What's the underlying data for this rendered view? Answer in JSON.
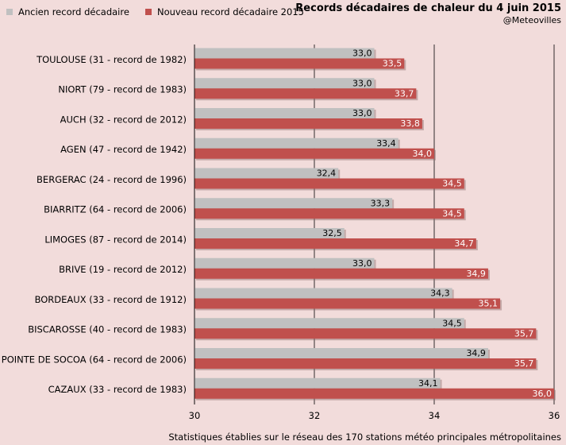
{
  "title": "Records décadaires de chaleur du 4 juin 2015",
  "subtitle": "@Meteovilles",
  "footnote": "Statistiques établies sur le réseau des 170 stations météo principales métropolitaines",
  "colors": {
    "old": "#c0c0c0",
    "new": "#c0504d",
    "background": "#f2dcdb"
  },
  "chart_data": {
    "type": "bar",
    "orientation": "horizontal",
    "categories": [
      "TOULOUSE (31 - record de 1982)",
      "NIORT (79 - record de 1983)",
      "AUCH (32 - record de 2012)",
      "AGEN (47 - record de 1942)",
      "BERGERAC (24 - record de 1996)",
      "BIARRITZ (64 - record de 2006)",
      "LIMOGES (87 - record de 2014)",
      "BRIVE (19 - record de 2012)",
      "BORDEAUX (33 - record de 1912)",
      "BISCAROSSE (40 - record de 1983)",
      "POINTE DE SOCOA (64 - record de 2006)",
      "CAZAUX (33 - record de 1983)"
    ],
    "series": [
      {
        "name": "Ancien record décadaire",
        "values": [
          33.0,
          33.0,
          33.0,
          33.4,
          32.4,
          33.3,
          32.5,
          33.0,
          34.3,
          34.5,
          34.9,
          34.1
        ],
        "labels": [
          "33,0",
          "33,0",
          "33,0",
          "33,4",
          "32,4",
          "33,3",
          "32,5",
          "33,0",
          "34,3",
          "34,5",
          "34,9",
          "34,1"
        ]
      },
      {
        "name": "Nouveau record décadaire 2015",
        "values": [
          33.5,
          33.7,
          33.8,
          34.0,
          34.5,
          34.5,
          34.7,
          34.9,
          35.1,
          35.7,
          35.7,
          36.0
        ],
        "labels": [
          "33,5",
          "33,7",
          "33,8",
          "34,0",
          "34,5",
          "34,5",
          "34,7",
          "34,9",
          "35,1",
          "35,7",
          "35,7",
          "36,0"
        ]
      }
    ],
    "xlim": [
      30,
      36
    ],
    "xticks": [
      30,
      32,
      34,
      36
    ],
    "xtick_labels": [
      "30",
      "32",
      "34",
      "36"
    ],
    "legend_position": "top-left",
    "grid": true
  }
}
